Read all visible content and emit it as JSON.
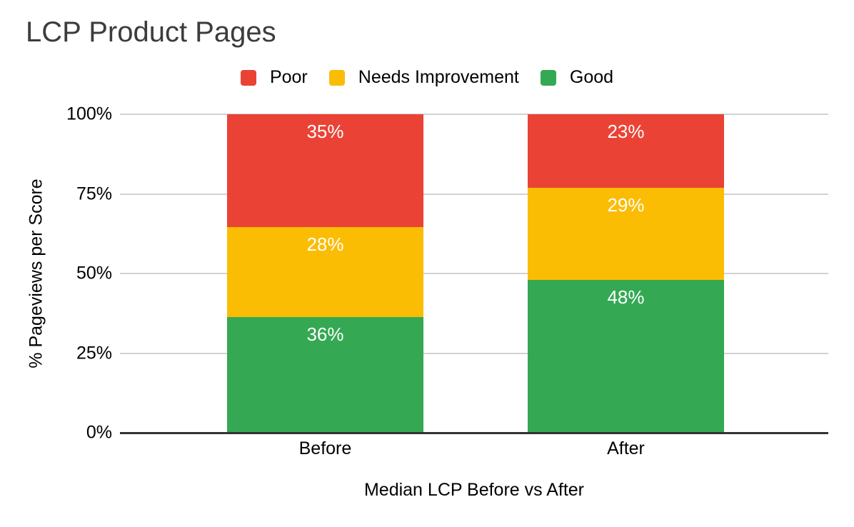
{
  "chart_data": {
    "type": "bar",
    "subtype": "stacked-100-percent-column",
    "title": "LCP Product Pages",
    "xlabel": "Median LCP Before vs After",
    "ylabel": "% Pageviews per Score",
    "categories": [
      "Before",
      "After"
    ],
    "series": [
      {
        "name": "Poor",
        "color": "#EA4335",
        "values": [
          35,
          23
        ],
        "labels": [
          "35%",
          "23%"
        ]
      },
      {
        "name": "Needs Improvement",
        "color": "#FBBC04",
        "values": [
          28,
          29
        ],
        "labels": [
          "28%",
          "29%"
        ]
      },
      {
        "name": "Good",
        "color": "#34A853",
        "values": [
          36,
          48
        ],
        "labels": [
          "36%",
          "48%"
        ]
      }
    ],
    "stack_order_bottom_to_top": [
      "Good",
      "Needs Improvement",
      "Poor"
    ],
    "y_ticks": [
      {
        "label": "0%",
        "value": 0
      },
      {
        "label": "25%",
        "value": 25
      },
      {
        "label": "50%",
        "value": 50
      },
      {
        "label": "75%",
        "value": 75
      },
      {
        "label": "100%",
        "value": 100
      }
    ],
    "ylim": [
      0,
      100
    ],
    "grid": true,
    "legend": {
      "position": "top",
      "entries": [
        "Poor",
        "Needs Improvement",
        "Good"
      ]
    },
    "colors": {
      "background": "#ffffff",
      "title_text": "#3c3c3c",
      "axis_text": "#000000",
      "data_label_text": "#ffffff",
      "gridline": "#d2d2d2",
      "baseline": "#333333"
    }
  }
}
